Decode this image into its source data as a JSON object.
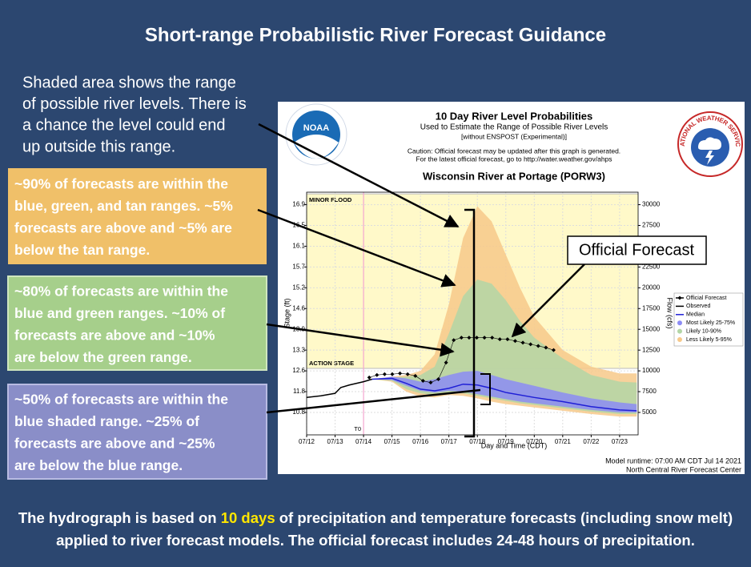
{
  "slide": {
    "title": "Short-range Probabilistic River Forecast Guidance",
    "note": {
      "lines": [
        "Shaded area shows the range",
        "of possible river levels. There is",
        "a chance the level could end",
        "up outside this range."
      ]
    },
    "boxes": [
      {
        "lines": [
          "~90% of forecasts are within the",
          "blue, green, and tan ranges. ~5%",
          "forecasts are above and ~5% are",
          "below the tan range."
        ]
      },
      {
        "lines": [
          "~80% of forecasts are within the",
          "blue and green ranges. ~10% of",
          "forecasts are above and ~10%",
          "are below the green range."
        ]
      },
      {
        "lines": [
          "~50% of forecasts are within the",
          "blue shaded range. ~25% of",
          "forecasts are above and ~25%",
          "are below the blue range."
        ]
      }
    ],
    "callout": "Official Forecast",
    "footer": {
      "line1": [
        "The hydrograph is based on ",
        "10 days",
        " of precipitation and temperature forecasts (including snow melt)"
      ],
      "line2": "applied to river forecast models. The official forecast includes 24-48 hours of precipitation."
    },
    "logos": {
      "noaa": "NOAA",
      "nws": "NATIONAL WEATHER SERVICE"
    }
  },
  "chart_data": {
    "type": "line",
    "title": "10 Day River Level Probabilities",
    "subtitle": "Used to Estimate the Range of Possible River Levels",
    "note": "[without ENSPOST (Experimental)]",
    "caution": [
      "Caution: Official forecast may be updated after this graph is generated.",
      "For the latest official forecast, go to http://water.weather.gov/ahps"
    ],
    "station": "Wisconsin River at Portage (PORW3)",
    "xlabel": "Day and Time (CDT)",
    "ylabel": "Flow (cfs)",
    "stage_label": "Stage (ft)",
    "runtime": "Model runtime: 07:00 AM CDT Jul 14 2021",
    "center": "North Central River Forecast Center",
    "xlim": [
      0,
      11.65
    ],
    "xticks": [
      {
        "value": 0,
        "label": "07/12"
      },
      {
        "value": 1,
        "label": "07/13"
      },
      {
        "value": 2,
        "label": "07/14"
      },
      {
        "value": 3,
        "label": "07/15"
      },
      {
        "value": 4,
        "label": "07/16"
      },
      {
        "value": 5,
        "label": "07/17"
      },
      {
        "value": 6,
        "label": "07/18"
      },
      {
        "value": 7,
        "label": "07/19"
      },
      {
        "value": 8,
        "label": "07/20"
      },
      {
        "value": 9,
        "label": "07/21"
      },
      {
        "value": 10,
        "label": "07/22"
      },
      {
        "value": 11,
        "label": "07/23"
      }
    ],
    "ylim": [
      2300,
      31500
    ],
    "yticks": [
      5000,
      7500,
      10000,
      12500,
      15000,
      17500,
      20000,
      22500,
      25000,
      27500,
      30000
    ],
    "stage_ticks": [
      10.8,
      11.8,
      12.6,
      13.3,
      13.9,
      14.6,
      15.2,
      15.7,
      16.1,
      16.5,
      16.9
    ],
    "grid": true,
    "t0": {
      "label": "T0",
      "x": 2.0
    },
    "thresholds": [
      {
        "label": "MINOR FLOOD",
        "value": 31300
      },
      {
        "label": "ACTION STAGE",
        "value": 10300
      }
    ],
    "series": [
      {
        "name": "Official Forecast",
        "color": "#000000",
        "style": "diamonds",
        "x": [
          2.2,
          2.47,
          2.74,
          3.01,
          3.28,
          3.55,
          3.82,
          4.09,
          4.36,
          4.63,
          4.9,
          5.17,
          5.44,
          5.71,
          5.98,
          6.25,
          6.52,
          6.79,
          7.06,
          7.33,
          7.6,
          7.87,
          8.14,
          8.41,
          8.68
        ],
        "values": [
          9200,
          9500,
          9600,
          9600,
          9700,
          9600,
          9400,
          8800,
          8600,
          9000,
          11000,
          13700,
          14000,
          14000,
          14000,
          14000,
          14000,
          13800,
          13800,
          13600,
          13400,
          13200,
          13000,
          12800,
          12500
        ]
      },
      {
        "name": "Observed",
        "color": "#000000",
        "style": "line",
        "x": [
          0,
          0.5,
          1,
          1.2,
          1.5,
          2,
          2.3
        ],
        "values": [
          6800,
          7000,
          7300,
          8000,
          8300,
          8700,
          9000
        ]
      },
      {
        "name": "Median",
        "color": "#1f1fd6",
        "style": "line",
        "x": [
          2.3,
          3,
          3.5,
          4,
          4.5,
          5,
          5.5,
          6,
          6.5,
          7,
          8,
          9,
          10,
          11,
          11.6
        ],
        "values": [
          9000,
          9100,
          8500,
          7800,
          7600,
          7900,
          8400,
          8300,
          7900,
          7400,
          6800,
          6300,
          5700,
          5300,
          5200
        ]
      },
      {
        "name": "Most Likely 25-75%",
        "color": "#8c8cf5",
        "style": "band",
        "x": [
          2.3,
          3,
          3.5,
          4,
          4.5,
          5,
          5.5,
          6,
          6.5,
          7,
          7.5,
          8,
          9,
          10,
          11,
          11.6
        ],
        "upper": [
          9000,
          9300,
          9100,
          8700,
          9000,
          9500,
          9900,
          10000,
          9500,
          9000,
          8600,
          8200,
          7400,
          6700,
          6200,
          6000
        ],
        "lower": [
          9000,
          8900,
          8200,
          7600,
          7400,
          7600,
          7500,
          7200,
          6900,
          6600,
          6300,
          6100,
          5700,
          5300,
          5000,
          5000
        ]
      },
      {
        "name": "Likely 10-90%",
        "color": "#b3d6a6",
        "style": "band",
        "x": [
          2.3,
          3,
          3.5,
          4,
          4.5,
          5,
          5.5,
          6,
          6.5,
          7,
          7.5,
          8,
          9,
          10,
          11,
          11.6
        ],
        "upper": [
          9000,
          9200,
          9300,
          9500,
          10500,
          14500,
          19000,
          21000,
          20500,
          18500,
          16000,
          14000,
          11500,
          9500,
          8700,
          8600
        ],
        "lower": [
          9000,
          8800,
          7800,
          7300,
          7100,
          7300,
          7300,
          7000,
          6700,
          6400,
          6100,
          5900,
          5500,
          5100,
          4800,
          4800
        ]
      },
      {
        "name": "Less Likely 5-95%",
        "color": "#f7c98a",
        "style": "band",
        "x": [
          2.3,
          3,
          3.5,
          4,
          4.5,
          5,
          5.5,
          6,
          6.5,
          7,
          7.5,
          8,
          9,
          10,
          11,
          11.6
        ],
        "upper": [
          9000,
          9300,
          9500,
          10000,
          12000,
          18000,
          26000,
          29800,
          28000,
          24000,
          20000,
          16500,
          12500,
          10500,
          9700,
          9700
        ],
        "lower": [
          9000,
          8700,
          7500,
          6900,
          6800,
          7100,
          7000,
          6700,
          6300,
          6000,
          5800,
          5600,
          5200,
          4800,
          4500,
          4500
        ]
      }
    ]
  }
}
